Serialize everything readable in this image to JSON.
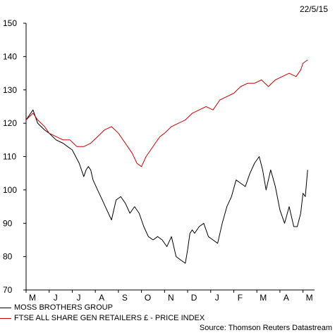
{
  "date_label": "22/5/15",
  "source": "Source: Thomson Reuters Datastream",
  "colors": {
    "series1": "#000000",
    "series2": "#cc0000"
  },
  "chart_data": {
    "type": "line",
    "ylim": [
      70,
      150
    ],
    "yticks": [
      70,
      80,
      90,
      100,
      110,
      120,
      130,
      140,
      150
    ],
    "xticks": [
      "M",
      "J",
      "J",
      "A",
      "S",
      "O",
      "N",
      "D",
      "J",
      "F",
      "M",
      "A",
      "M"
    ],
    "grid": false,
    "legend_position": "bottom-left",
    "series": [
      {
        "name": "MOSS BROTHERS GROUP",
        "color": "#000000",
        "x": [
          0,
          0.3,
          0.5,
          0.8,
          1.0,
          1.3,
          1.6,
          1.8,
          2.0,
          2.3,
          2.5,
          2.6,
          2.7,
          2.8,
          2.9,
          3.1,
          3.3,
          3.5,
          3.7,
          3.9,
          4.1,
          4.3,
          4.5,
          4.7,
          4.9,
          5.1,
          5.3,
          5.5,
          5.7,
          5.9,
          6.1,
          6.3,
          6.5,
          6.7,
          6.9,
          7.0,
          7.1,
          7.2,
          7.3,
          7.5,
          7.7,
          7.9,
          8.1,
          8.3,
          8.5,
          8.7,
          8.9,
          9.1,
          9.3,
          9.5,
          9.7,
          9.9,
          10.1,
          10.25,
          10.4,
          10.6,
          10.8,
          11.0,
          11.2,
          11.4,
          11.6,
          11.75,
          11.9,
          12.0,
          12.1,
          12.2
        ],
        "values": [
          121,
          124,
          120,
          118,
          117,
          115,
          114,
          113,
          112,
          108,
          104,
          106,
          107,
          106,
          103,
          100,
          97,
          94,
          91,
          97,
          98,
          96,
          93,
          95,
          93,
          89,
          86,
          85,
          86,
          85,
          83,
          86,
          80,
          79,
          78,
          82,
          87,
          88,
          87,
          89,
          90,
          86,
          85,
          84,
          90,
          95,
          98,
          103,
          102,
          101,
          105,
          108,
          110,
          106,
          100,
          106,
          101,
          94,
          90,
          95,
          89,
          89,
          93,
          99,
          98,
          106
        ]
      },
      {
        "name": "FTSE ALL SHARE GEN RETAILERS £ - PRICE INDEX",
        "color": "#cc0000",
        "x": [
          0,
          0.3,
          0.5,
          0.8,
          1.0,
          1.3,
          1.6,
          1.9,
          2.2,
          2.5,
          2.8,
          3.1,
          3.4,
          3.7,
          4.0,
          4.3,
          4.6,
          4.8,
          5.0,
          5.2,
          5.4,
          5.6,
          5.8,
          6.0,
          6.3,
          6.6,
          6.9,
          7.2,
          7.5,
          7.8,
          8.1,
          8.4,
          8.7,
          9.0,
          9.3,
          9.6,
          9.9,
          10.2,
          10.5,
          10.8,
          11.1,
          11.4,
          11.7,
          11.9,
          12.0,
          12.2
        ],
        "values": [
          121,
          123,
          121,
          119,
          117,
          116,
          115,
          115,
          113,
          113,
          114,
          116,
          118,
          119,
          117,
          114,
          111,
          108,
          107,
          110,
          112,
          114,
          116,
          117,
          119,
          120,
          121,
          123,
          124,
          125,
          124,
          127,
          128,
          129,
          131,
          132,
          132,
          133,
          131,
          133,
          134,
          135,
          134,
          136,
          138,
          139
        ]
      }
    ]
  }
}
